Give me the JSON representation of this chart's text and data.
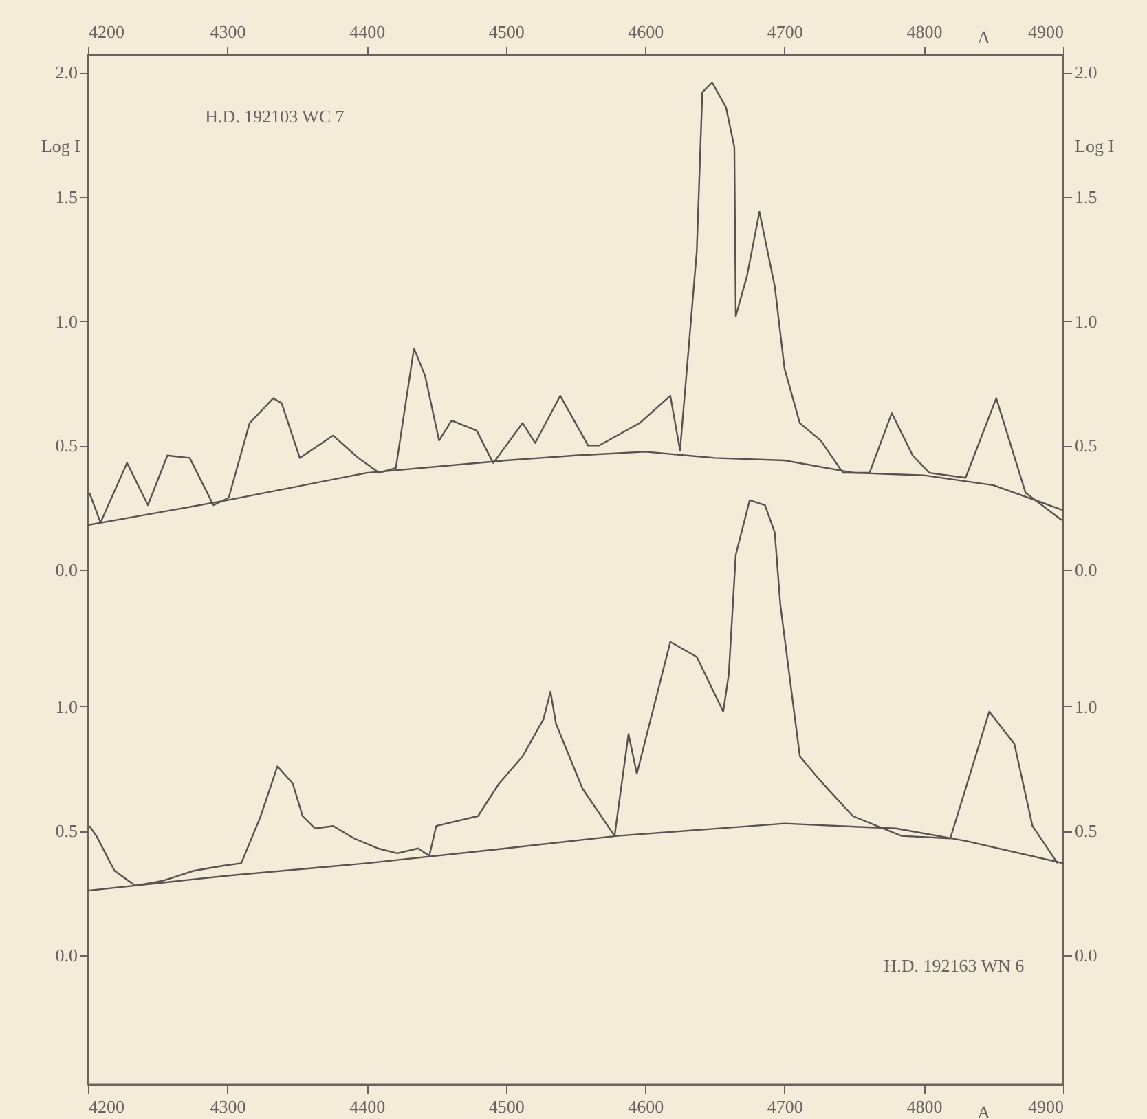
{
  "chart_data": {
    "type": "line",
    "xlim": [
      4200,
      4900
    ],
    "xticks": [
      4200,
      4300,
      4400,
      4500,
      4600,
      4700,
      4800,
      4900
    ],
    "xlabel": "A",
    "x2lim": [
      4200,
      4900
    ],
    "x2ticks": [
      4200,
      4300,
      4400,
      4500,
      4600,
      4700,
      4800,
      4900
    ],
    "x2label": "A",
    "ylim": [
      -2.07,
      2.07
    ],
    "yticks": [
      {
        "value": 2,
        "label": "2.0"
      },
      1.5,
      {
        "value": 1,
        "label": "1.0"
      },
      0.5,
      {
        "value": 0,
        "label": "0.0"
      }
    ],
    "ylabel": "Log I",
    "y2lim": [
      -2.07,
      2.07
    ],
    "y2ticks": [
      {
        "value": 2,
        "label": "2.0"
      },
      1.5,
      {
        "value": 1,
        "label": "1.0"
      },
      0.5,
      {
        "value": 0,
        "label": "0.0"
      }
    ],
    "y2label": "Log I",
    "y3lim": [
      -0.52,
      3.62
    ],
    "y3ticks": [
      {
        "value": 1,
        "label": "1.0"
      },
      {
        "value": 0.5,
        "label": "0.5"
      },
      {
        "value": 0,
        "label": "0.0"
      }
    ],
    "grid": false,
    "marker": "none",
    "line_style": "solid",
    "annotations": [
      "H.D. 192103 WC  7",
      "H.D. 192163 WN 6"
    ],
    "series": [
      {
        "color": "#5a5250",
        "x": [
          4201,
          4209,
          4228,
          4243,
          4257,
          4273,
          4290,
          4301,
          4316,
          4333,
          4339,
          4352,
          4376,
          4394,
          4409,
          4421,
          4434,
          4442,
          4452,
          4461,
          4479,
          4489,
          4491,
          4512,
          4521,
          4539,
          4559,
          4567,
          4596,
          4618,
          4625,
          4637,
          4641,
          4648,
          4658,
          4664,
          4665,
          4673,
          4682,
          4693,
          4700,
          4711,
          4726,
          4742,
          4761,
          4777,
          4792,
          4804,
          4830,
          4852,
          4873,
          4899
        ],
        "values": [
          0.31,
          0.19,
          0.43,
          0.26,
          0.46,
          0.45,
          0.26,
          0.29,
          0.59,
          0.69,
          0.67,
          0.45,
          0.54,
          0.45,
          0.39,
          0.41,
          0.89,
          0.78,
          0.52,
          0.6,
          0.56,
          0.45,
          0.43,
          0.59,
          0.51,
          0.7,
          0.5,
          0.5,
          0.59,
          0.7,
          0.48,
          1.28,
          1.92,
          1.96,
          1.86,
          1.7,
          1.02,
          1.18,
          1.44,
          1.14,
          0.81,
          0.59,
          0.52,
          0.39,
          0.39,
          0.63,
          0.46,
          0.39,
          0.37,
          0.69,
          0.31,
          0.2
        ]
      },
      {
        "color": "#5a5250",
        "axis": "y2",
        "x": [
          4200,
          4300,
          4400,
          4500,
          4550,
          4600,
          4650,
          4700,
          4750,
          4800,
          4850,
          4900
        ],
        "values": [
          0.18,
          0.28,
          0.39,
          0.44,
          0.46,
          0.475,
          0.45,
          0.44,
          0.39,
          0.38,
          0.34,
          0.24
        ]
      },
      {
        "color": "#5a5250",
        "axis": "y3",
        "x": [
          4201,
          4206,
          4219,
          4234,
          4254,
          4276,
          4297,
          4310,
          4324,
          4336,
          4347,
          4354,
          4363,
          4376,
          4391,
          4408,
          4422,
          4437,
          4445,
          4450,
          4480,
          4495,
          4512,
          4527,
          4532,
          4536,
          4555,
          4578,
          4588,
          4594,
          4618,
          4637,
          4656,
          4660,
          4665,
          4675,
          4686,
          4693,
          4697,
          4711,
          4726,
          4749,
          4784,
          4819,
          4847,
          4865,
          4878,
          4896
        ],
        "values": [
          0.52,
          0.48,
          0.34,
          0.28,
          0.3,
          0.34,
          0.36,
          0.37,
          0.56,
          0.76,
          0.69,
          0.56,
          0.51,
          0.52,
          0.47,
          0.43,
          0.41,
          0.43,
          0.4,
          0.52,
          0.56,
          0.69,
          0.8,
          0.95,
          1.06,
          0.93,
          0.67,
          0.48,
          0.89,
          0.73,
          1.26,
          1.2,
          0.98,
          1.13,
          1.61,
          1.83,
          1.81,
          1.7,
          1.41,
          0.8,
          0.7,
          0.56,
          0.48,
          0.47,
          0.98,
          0.85,
          0.52,
          0.37
        ]
      },
      {
        "color": "#5a5250",
        "axis": "y3",
        "x": [
          4200,
          4300,
          4400,
          4500,
          4580,
          4700,
          4780,
          4830,
          4900
        ],
        "values": [
          0.26,
          0.32,
          0.37,
          0.43,
          0.48,
          0.53,
          0.51,
          0.46,
          0.37
        ]
      }
    ]
  }
}
